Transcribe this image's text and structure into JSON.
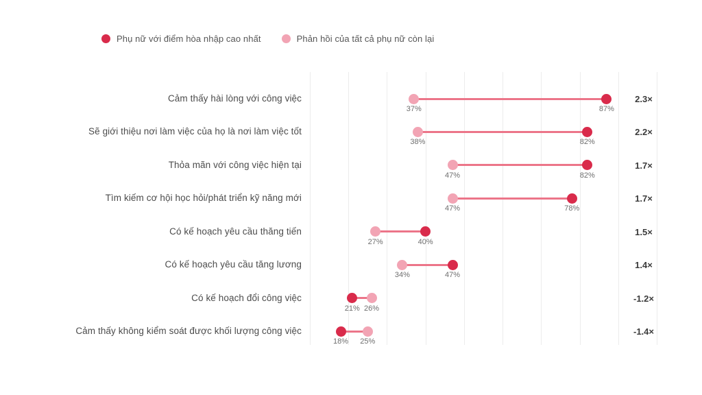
{
  "legend": {
    "items": [
      {
        "label": "Phụ nữ với điểm hòa nhập cao nhất",
        "color": "#d92b4b"
      },
      {
        "label": "Phản hồi của tất cả phụ nữ còn lại",
        "color": "#f2a4b4"
      }
    ]
  },
  "colors": {
    "highest_dot": "#d92b4b",
    "rest_dot": "#f2a4b4",
    "connector": "#ec7589",
    "gridline": "#ececec"
  },
  "chart_data": {
    "type": "dumbbell",
    "orientation": "horizontal",
    "categories": [
      "Cảm thấy hài lòng với công việc",
      "Sẽ giới thiệu nơi làm việc của họ là nơi làm việc tốt",
      "Thỏa mãn với công việc hiện tại",
      "Tìm kiếm cơ hội học hỏi/phát triển kỹ năng mới",
      "Có kế hoạch yêu cầu thăng tiến",
      "Có kế hoạch yêu cầu tăng lương",
      "Có kế hoạch đổi công việc",
      "Cảm thấy không kiểm soát được khối lượng công việc"
    ],
    "series": [
      {
        "name": "Phụ nữ với điểm hòa nhập cao nhất",
        "values": [
          87,
          82,
          82,
          78,
          40,
          47,
          21,
          18
        ]
      },
      {
        "name": "Phản hồi của tất cả phụ nữ còn lại",
        "values": [
          37,
          38,
          47,
          47,
          27,
          34,
          26,
          25
        ]
      }
    ],
    "value_label_format": "{v}%",
    "ratios": [
      "2.3×",
      "2.2×",
      "1.7×",
      "1.7×",
      "1.5×",
      "1.4×",
      "-1.2×",
      "-1.4×"
    ],
    "xlim": [
      10,
      100
    ],
    "grid_step": 10,
    "grid": "vertical-only",
    "legend_position": "top-left",
    "title": "",
    "xlabel": "",
    "ylabel": ""
  }
}
